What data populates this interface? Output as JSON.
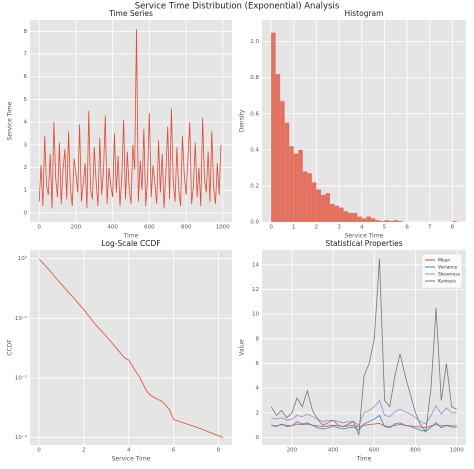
{
  "title": "Service Time Distribution (Exponential) Analysis",
  "chart_data": [
    {
      "type": "line",
      "title": "Time Series",
      "xlabel": "Time",
      "ylabel": "Service Time",
      "color": "#E24A33",
      "grid": true,
      "xlim": [
        -50,
        1050
      ],
      "xticks": [
        0,
        200,
        400,
        600,
        800,
        1000
      ],
      "ylim": [
        -0.4,
        8.5
      ],
      "yticks": [
        0,
        1,
        2,
        3,
        4,
        5,
        6,
        7,
        8
      ],
      "x": [
        0,
        10,
        20,
        30,
        40,
        50,
        60,
        70,
        80,
        90,
        100,
        110,
        120,
        130,
        140,
        150,
        160,
        170,
        180,
        190,
        200,
        210,
        220,
        230,
        240,
        250,
        260,
        270,
        280,
        290,
        300,
        310,
        320,
        330,
        340,
        350,
        360,
        370,
        380,
        390,
        400,
        410,
        420,
        430,
        440,
        450,
        460,
        470,
        480,
        490,
        500,
        510,
        520,
        530,
        540,
        550,
        560,
        570,
        580,
        590,
        600,
        610,
        620,
        630,
        640,
        650,
        660,
        670,
        680,
        690,
        700,
        710,
        720,
        730,
        740,
        750,
        760,
        770,
        780,
        790,
        800,
        810,
        820,
        830,
        840,
        850,
        860,
        870,
        880,
        890,
        900,
        910,
        920,
        930,
        940,
        950,
        960,
        970,
        980,
        990
      ],
      "values": [
        0.5,
        2.1,
        0.3,
        3.4,
        1.2,
        0.8,
        2.6,
        0.2,
        4.0,
        1.5,
        0.7,
        3.1,
        0.4,
        1.9,
        2.8,
        0.6,
        3.6,
        1.1,
        0.3,
        2.4,
        1.7,
        0.9,
        3.9,
        0.5,
        1.3,
        2.2,
        0.2,
        4.5,
        1.0,
        0.6,
        2.9,
        1.4,
        0.3,
        3.3,
        0.8,
        1.8,
        4.3,
        0.4,
        2.0,
        1.2,
        0.7,
        3.5,
        0.9,
        2.5,
        0.3,
        1.6,
        4.1,
        0.6,
        2.7,
        1.1,
        0.4,
        3.0,
        1.9,
        8.1,
        0.5,
        2.3,
        1.0,
        3.7,
        0.3,
        1.5,
        4.4,
        0.7,
        2.1,
        1.3,
        0.4,
        3.2,
        0.9,
        2.6,
        0.2,
        1.8,
        3.8,
        0.6,
        4.6,
        1.4,
        0.5,
        2.9,
        1.0,
        0.3,
        3.4,
        1.7,
        0.8,
        2.4,
        4.0,
        0.4,
        1.2,
        3.1,
        0.7,
        2.0,
        0.3,
        4.2,
        1.5,
        0.9,
        2.7,
        0.5,
        3.6,
        1.1,
        0.4,
        2.2,
        0.8,
        3.0
      ]
    },
    {
      "type": "histogram",
      "title": "Histogram",
      "xlabel": "Service Time",
      "ylabel": "Density",
      "color": "#E24A33",
      "grid": true,
      "xlim": [
        -0.4,
        8.6
      ],
      "xticks": [
        0,
        1,
        2,
        3,
        4,
        5,
        6,
        7,
        8
      ],
      "ylim": [
        0,
        1.12
      ],
      "yticks": [
        {
          "value": 0,
          "label": "0.0"
        },
        {
          "value": 0.2,
          "label": "0.2"
        },
        {
          "value": 0.4,
          "label": "0.4"
        },
        {
          "value": 0.6,
          "label": "0.6"
        },
        {
          "value": 0.8,
          "label": "0.8"
        },
        {
          "value": 1,
          "label": "1.0"
        }
      ],
      "bins": [
        0,
        0.2,
        0.4,
        0.6,
        0.8,
        1,
        1.2,
        1.4,
        1.6,
        1.8,
        2,
        2.2,
        2.4,
        2.6,
        2.8,
        3,
        3.2,
        3.4,
        3.6,
        3.8,
        4,
        4.2,
        4.4,
        4.6,
        4.8,
        5,
        5.2,
        5.4,
        5.6,
        5.8,
        6,
        6.2,
        6.4,
        6.6,
        6.8,
        7,
        7.2,
        7.4,
        7.6,
        7.8,
        8,
        8.2
      ],
      "values": [
        1.05,
        0.82,
        0.67,
        0.55,
        0.42,
        0.38,
        0.4,
        0.28,
        0.27,
        0.22,
        0.18,
        0.15,
        0.16,
        0.1,
        0.09,
        0.08,
        0.06,
        0.05,
        0.05,
        0.03,
        0.02,
        0.03,
        0.02,
        0.01,
        0.005,
        0.01,
        0.005,
        0.01,
        0.005,
        0,
        0,
        0,
        0,
        0,
        0,
        0,
        0,
        0,
        0,
        0,
        0.005
      ]
    },
    {
      "type": "line",
      "title": "Log-Scale CCDF",
      "xlabel": "Service Time",
      "ylabel": "CCDF",
      "color": "#E24A33",
      "grid": true,
      "ylog": true,
      "xlim": [
        -0.4,
        8.6
      ],
      "xticks": [
        0,
        2,
        4,
        6,
        8
      ],
      "ylim": [
        0.00075,
        1.4
      ],
      "yticks": [
        {
          "value": 0.001,
          "label": "10⁻³"
        },
        {
          "value": 0.01,
          "label": "10⁻²"
        },
        {
          "value": 0.1,
          "label": "10⁻¹"
        },
        {
          "value": 1,
          "label": "10⁰"
        }
      ],
      "x": [
        0,
        0.5,
        1,
        1.5,
        2,
        2.5,
        3,
        3.5,
        3.8,
        4,
        4.2,
        4.5,
        4.8,
        5,
        5.5,
        5.8,
        6,
        7,
        8.2
      ],
      "values": [
        1,
        0.62,
        0.37,
        0.23,
        0.14,
        0.08,
        0.05,
        0.03,
        0.022,
        0.02,
        0.015,
        0.01,
        0.006,
        0.005,
        0.004,
        0.003,
        0.002,
        0.0015,
        0.001
      ]
    },
    {
      "type": "line",
      "title": "Statistical Properties",
      "xlabel": "Time",
      "ylabel": "Value",
      "grid": true,
      "legend": "upper right",
      "xlim": [
        55,
        1045
      ],
      "xticks": [
        200,
        400,
        600,
        800,
        1000
      ],
      "ylim": [
        -0.6,
        15.2
      ],
      "yticks": [
        0,
        2,
        4,
        6,
        8,
        10,
        12,
        14
      ],
      "x": [
        100,
        125,
        150,
        175,
        200,
        225,
        250,
        275,
        300,
        325,
        350,
        375,
        400,
        425,
        450,
        475,
        500,
        525,
        550,
        575,
        600,
        625,
        650,
        675,
        700,
        725,
        750,
        775,
        800,
        825,
        850,
        875,
        900,
        925,
        950,
        975,
        1000
      ],
      "series": [
        {
          "name": "Mean",
          "color": "#E24A33",
          "values": [
            1.0,
            0.95,
            1.05,
            1.0,
            0.95,
            1.1,
            1.05,
            1.1,
            1.0,
            0.95,
            0.9,
            0.95,
            1.0,
            0.95,
            0.9,
            0.95,
            1.0,
            0.85,
            1.0,
            1.05,
            1.1,
            1.15,
            0.95,
            0.9,
            1.0,
            1.05,
            1.0,
            0.95,
            0.9,
            0.85,
            0.8,
            0.95,
            1.05,
            0.95,
            1.0,
            0.95,
            0.95
          ]
        },
        {
          "name": "Variance",
          "color": "#348ABD",
          "values": [
            1.0,
            0.9,
            1.1,
            0.9,
            0.95,
            1.3,
            1.1,
            1.2,
            1.0,
            0.8,
            0.7,
            0.8,
            0.9,
            0.8,
            0.7,
            0.8,
            0.85,
            0.6,
            1.1,
            1.3,
            1.5,
            1.8,
            0.9,
            0.8,
            1.1,
            1.2,
            1.0,
            0.9,
            0.75,
            0.6,
            0.5,
            0.85,
            1.2,
            0.8,
            1.0,
            0.85,
            0.85
          ]
        },
        {
          "name": "Skewness",
          "color": "#988ED5",
          "values": [
            1.6,
            1.5,
            1.6,
            1.4,
            1.5,
            1.8,
            1.7,
            1.9,
            1.7,
            1.5,
            1.3,
            1.4,
            1.4,
            1.3,
            1.2,
            1.3,
            1.3,
            1.0,
            2.0,
            2.2,
            2.5,
            3.0,
            1.8,
            1.7,
            2.1,
            2.3,
            2.1,
            1.9,
            1.6,
            1.3,
            1.1,
            1.8,
            2.6,
            1.9,
            2.4,
            2.0,
            2.0
          ]
        },
        {
          "name": "Kurtosis",
          "color": "#777777",
          "values": [
            2.5,
            1.8,
            2.2,
            1.6,
            2.0,
            3.2,
            2.5,
            3.8,
            2.2,
            1.5,
            1.0,
            1.2,
            1.4,
            1.0,
            0.9,
            1.1,
            1.3,
            0.2,
            5.0,
            6.0,
            8.0,
            14.5,
            3.0,
            2.5,
            5.0,
            6.8,
            5.0,
            3.5,
            2.0,
            1.0,
            0.5,
            4.0,
            10.5,
            3.0,
            6.0,
            2.5,
            2.3
          ]
        }
      ]
    }
  ]
}
